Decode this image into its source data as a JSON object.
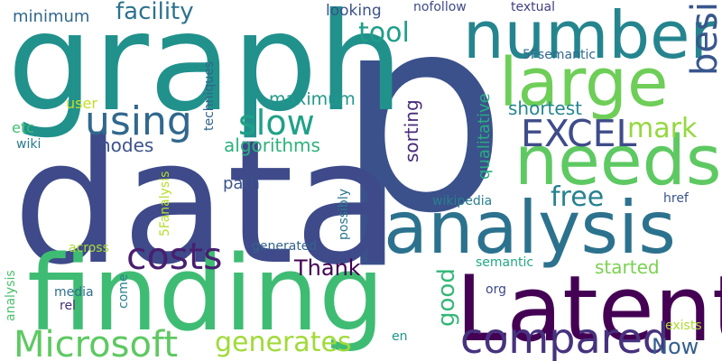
{
  "words": [
    {
      "text": "p",
      "color": "#3b518b"
    },
    {
      "text": "data",
      "color": "#3e4a89"
    },
    {
      "text": "graph",
      "color": "#21918c"
    },
    {
      "text": "finding",
      "color": "#3fbc73"
    },
    {
      "text": "Latent",
      "color": "#440154"
    },
    {
      "text": "analysis",
      "color": "#2c728e"
    },
    {
      "text": "number",
      "color": "#25858e"
    },
    {
      "text": "needs",
      "color": "#5ec962"
    },
    {
      "text": "large",
      "color": "#6ece58"
    },
    {
      "text": "using",
      "color": "#31688e"
    },
    {
      "text": "Microsoft",
      "color": "#5ec962"
    },
    {
      "text": "compared",
      "color": "#46327e"
    },
    {
      "text": "costs",
      "color": "#481f70"
    },
    {
      "text": "slow",
      "color": "#1fa187"
    },
    {
      "text": "EXCEL",
      "color": "#3e4c8a"
    },
    {
      "text": "besides",
      "color": "#39568c"
    },
    {
      "text": "generates",
      "color": "#a0da39"
    },
    {
      "text": "facility",
      "color": "#2c728e"
    },
    {
      "text": "tool",
      "color": "#1f9e89"
    },
    {
      "text": "mark",
      "color": "#95d840"
    },
    {
      "text": "free",
      "color": "#26828e"
    },
    {
      "text": "Thank",
      "color": "#440154"
    },
    {
      "text": "good",
      "color": "#35b779"
    },
    {
      "text": "Now",
      "color": "#355f8d"
    },
    {
      "text": "started",
      "color": "#7ad151"
    },
    {
      "text": "shortest",
      "color": "#24868e"
    },
    {
      "text": "maximum",
      "color": "#1f988b"
    },
    {
      "text": "algorithms",
      "color": "#2db27d"
    },
    {
      "text": "nodes",
      "color": "#3b528b"
    },
    {
      "text": "path",
      "color": "#3b528b"
    },
    {
      "text": "sorting",
      "color": "#472a7a"
    },
    {
      "text": "qualitative",
      "color": "#27ad81"
    },
    {
      "text": "minimum",
      "color": "#31688e"
    },
    {
      "text": "looking",
      "color": "#3b528b"
    },
    {
      "text": "user",
      "color": "#c2df23"
    },
    {
      "text": "techniques",
      "color": "#32658e"
    },
    {
      "text": "5Fsemantic",
      "color": "#31688e"
    },
    {
      "text": "nofollow",
      "color": "#3e4a89"
    },
    {
      "text": "textual",
      "color": "#424086"
    },
    {
      "text": "etc",
      "color": "#3fbc73"
    },
    {
      "text": "wiki",
      "color": "#287c8e"
    },
    {
      "text": "5Fanalysis",
      "color": "#b5de2b"
    },
    {
      "text": "possibly",
      "color": "#2a788e"
    },
    {
      "text": "wikipedia",
      "color": "#27808e"
    },
    {
      "text": "href",
      "color": "#3b528b"
    },
    {
      "text": "generated",
      "color": "#33638d"
    },
    {
      "text": "across",
      "color": "#aadc32"
    },
    {
      "text": "semantic",
      "color": "#22a884"
    },
    {
      "text": "analysis",
      "color": "#4ac16d"
    },
    {
      "text": "media",
      "color": "#2e6f8e"
    },
    {
      "text": "come",
      "color": "#26828e"
    },
    {
      "text": "rel",
      "color": "#472d7b"
    },
    {
      "text": "org",
      "color": "#3e4989"
    },
    {
      "text": "exists",
      "color": "#addc30"
    },
    {
      "text": "en",
      "color": "#1f948c"
    }
  ]
}
